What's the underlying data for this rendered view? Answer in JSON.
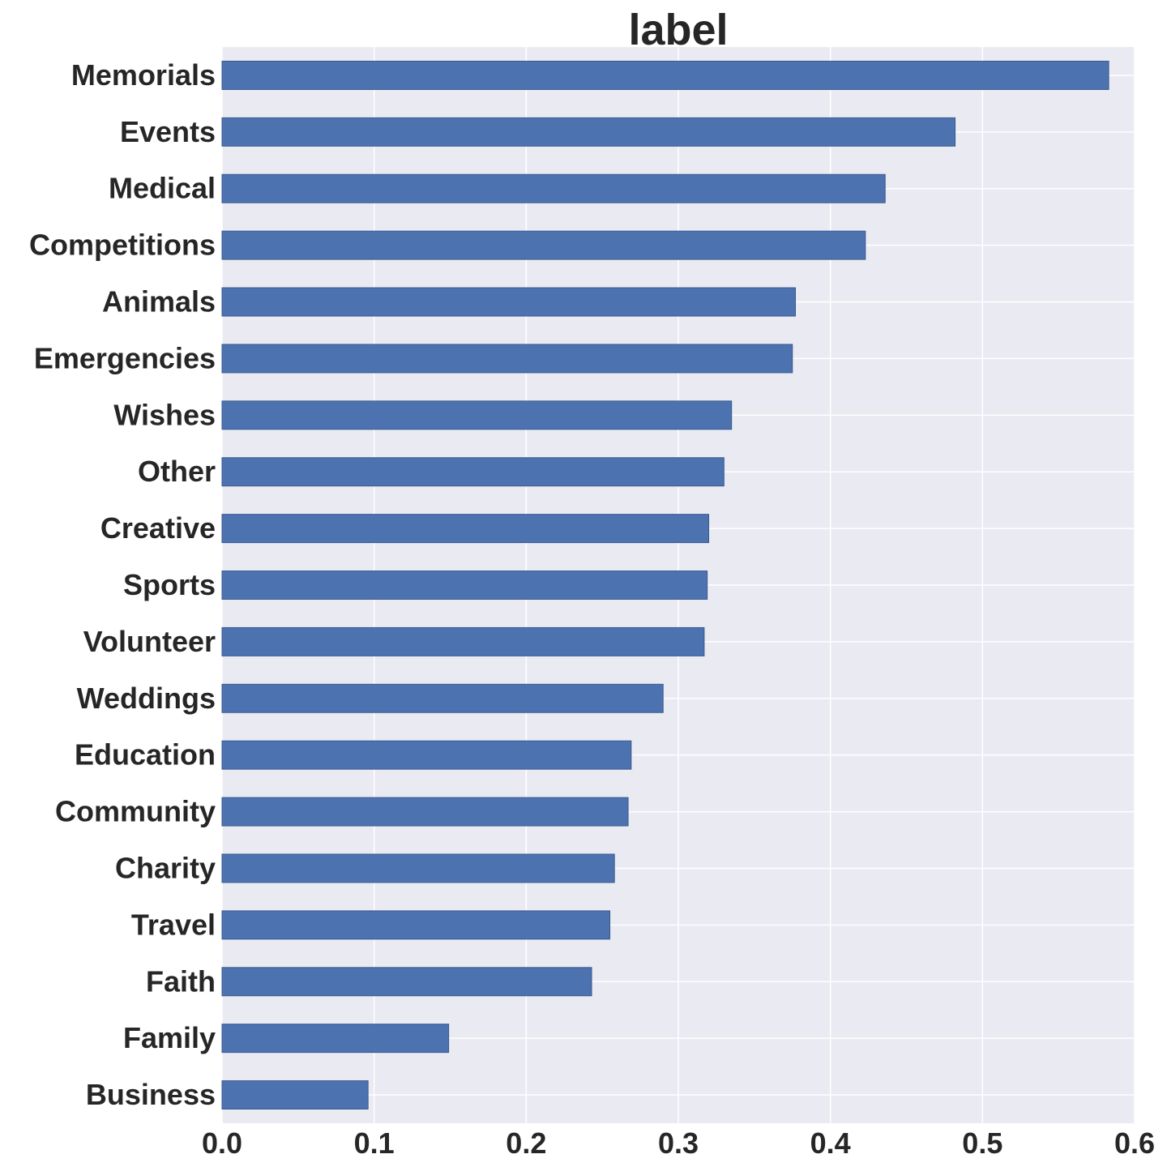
{
  "colors": {
    "plot_background": "#eaeaf2",
    "grid": "#ffffff",
    "bar": "#4c72b0",
    "bar_edge": "#3a5a8f",
    "text": "#262626"
  },
  "chart_data": {
    "type": "bar",
    "orientation": "horizontal",
    "title": "label",
    "xlabel": "",
    "ylabel": "",
    "xlim": [
      0,
      0.6
    ],
    "xticks": [
      "0.0",
      "0.1",
      "0.2",
      "0.3",
      "0.4",
      "0.5",
      "0.6"
    ],
    "grid": true,
    "categories": [
      "Memorials",
      "Events",
      "Medical",
      "Competitions",
      "Animals",
      "Emergencies",
      "Wishes",
      "Other",
      "Creative",
      "Sports",
      "Volunteer",
      "Weddings",
      "Education",
      "Community",
      "Charity",
      "Travel",
      "Faith",
      "Family",
      "Business"
    ],
    "values": [
      0.583,
      0.482,
      0.436,
      0.423,
      0.377,
      0.375,
      0.335,
      0.33,
      0.32,
      0.319,
      0.317,
      0.29,
      0.269,
      0.267,
      0.258,
      0.255,
      0.243,
      0.149,
      0.096
    ]
  }
}
